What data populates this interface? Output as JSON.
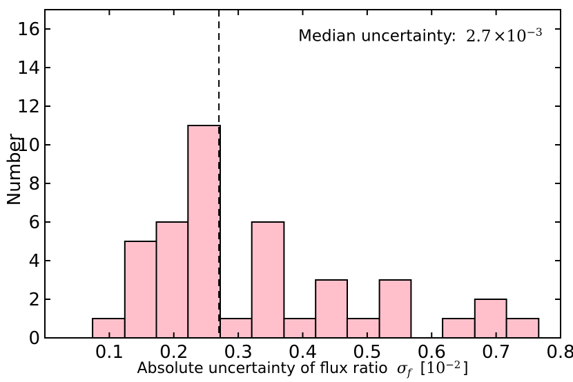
{
  "figure": {
    "background": "#ffffff"
  },
  "annotation": {
    "label": "Median uncertainty:",
    "value": "2.7",
    "times_base": "×10",
    "exponent": "−3"
  },
  "axes": {
    "ylabel": "Number",
    "xlabel_text": "Absolute uncertainty of flux ratio",
    "xlabel_symbol": "σ",
    "xlabel_symbol_sub": "f",
    "xlabel_unit_open": "[",
    "xlabel_unit_base": "10",
    "xlabel_unit_exp": "−2",
    "xlabel_unit_close": "]"
  },
  "chart_data": {
    "type": "bar",
    "subtype": "histogram",
    "title": "",
    "xlabel": "Absolute uncertainty of flux ratio σ_f [10^−2]",
    "ylabel": "Number",
    "annotation_text": "Median uncertainty: 2.7 ×10^−3",
    "bin_edges": [
      0.074,
      0.124,
      0.173,
      0.222,
      0.272,
      0.321,
      0.371,
      0.42,
      0.469,
      0.519,
      0.568,
      0.617,
      0.667,
      0.716,
      0.766
    ],
    "counts": [
      1,
      5,
      6,
      11,
      1,
      6,
      1,
      3,
      1,
      3,
      0,
      1,
      2,
      1
    ],
    "xlim": [
      0,
      0.8
    ],
    "ylim": [
      0,
      17
    ],
    "x_ticks": [
      0.1,
      0.2,
      0.3,
      0.4,
      0.5,
      0.6,
      0.7,
      0.8
    ],
    "x_tick_labels": [
      "0.1",
      "0.2",
      "0.3",
      "0.4",
      "0.5",
      "0.6",
      "0.7",
      "0.8"
    ],
    "y_ticks": [
      0,
      2,
      4,
      6,
      8,
      10,
      12,
      14,
      16
    ],
    "y_tick_labels": [
      "0",
      "2",
      "4",
      "6",
      "8",
      "10",
      "12",
      "14",
      "16"
    ],
    "median_line_x": 0.27,
    "median_line_style": "dashed",
    "median_line_color": "#000000",
    "bar_fill": "#ffc0cb",
    "bar_edge": "#000000",
    "axis_color": "#000000",
    "grid": false,
    "legend": null
  }
}
